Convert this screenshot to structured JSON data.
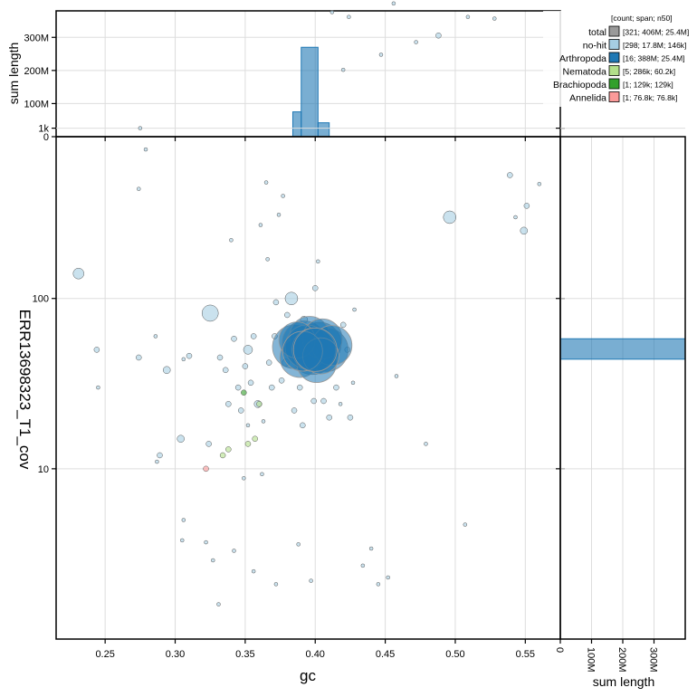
{
  "chart_data": [
    {
      "type": "scatter",
      "name": "blob",
      "xlabel": "gc",
      "ylabel": "ERR13698323_T1_cov",
      "xlim": [
        0.215,
        0.575
      ],
      "ylim_log10": [
        0,
        2.95
      ],
      "y_scale": "log",
      "grid": true,
      "x_ticks": [
        0.25,
        0.3,
        0.35,
        0.4,
        0.45,
        0.5,
        0.55
      ],
      "x_tick_labels": [
        "0.25",
        "0.30",
        "0.35",
        "0.40",
        "0.45",
        "0.50",
        "0.55"
      ],
      "y_ticks": [
        10,
        100,
        1000
      ],
      "y_tick_labels": [
        "10",
        "100",
        "1k"
      ],
      "series": [
        {
          "name": "no-hit",
          "color": "#a6cee3",
          "points": [
            [
              0.231,
              140,
              6
            ],
            [
              0.244,
              50,
              3
            ],
            [
              0.245,
              30,
              2
            ],
            [
              0.275,
              1000,
              2
            ],
            [
              0.274,
              440,
              2
            ],
            [
              0.279,
              750,
              2
            ],
            [
              0.274,
              45,
              3
            ],
            [
              0.286,
              60,
              2
            ],
            [
              0.287,
              11,
              2
            ],
            [
              0.289,
              12,
              3
            ],
            [
              0.294,
              38,
              4
            ],
            [
              0.304,
              15,
              4
            ],
            [
              0.306,
              44,
              2
            ],
            [
              0.31,
              46,
              3
            ],
            [
              0.306,
              5,
              2
            ],
            [
              0.305,
              3.8,
              2
            ],
            [
              0.324,
              14,
              3
            ],
            [
              0.325,
              82,
              9
            ],
            [
              0.332,
              45,
              3
            ],
            [
              0.336,
              38,
              3
            ],
            [
              0.338,
              24,
              3
            ],
            [
              0.34,
              220,
              2
            ],
            [
              0.342,
              58,
              3
            ],
            [
              0.345,
              30,
              3
            ],
            [
              0.347,
              22,
              3
            ],
            [
              0.35,
              40,
              3
            ],
            [
              0.352,
              50,
              5
            ],
            [
              0.352,
              18,
              2
            ],
            [
              0.354,
              32,
              3
            ],
            [
              0.356,
              60,
              3
            ],
            [
              0.359,
              24,
              4
            ],
            [
              0.361,
              270,
              2
            ],
            [
              0.363,
              19,
              2
            ],
            [
              0.365,
              480,
              2
            ],
            [
              0.366,
              170,
              2
            ],
            [
              0.367,
              42,
              3
            ],
            [
              0.369,
              30,
              3
            ],
            [
              0.371,
              60,
              3
            ],
            [
              0.372,
              95,
              3
            ],
            [
              0.374,
              310,
              2
            ],
            [
              0.376,
              33,
              3
            ],
            [
              0.377,
              400,
              2
            ],
            [
              0.379,
              42,
              4
            ],
            [
              0.38,
              80,
              3
            ],
            [
              0.383,
              100,
              7
            ],
            [
              0.385,
              22,
              3
            ],
            [
              0.387,
              62,
              3
            ],
            [
              0.389,
              30,
              3
            ],
            [
              0.391,
              18,
              3
            ],
            [
              0.392,
              75,
              4
            ],
            [
              0.395,
              40,
              3
            ],
            [
              0.397,
              56,
              3
            ],
            [
              0.399,
              25,
              3
            ],
            [
              0.4,
              115,
              3
            ],
            [
              0.402,
              165,
              2
            ],
            [
              0.404,
              38,
              3
            ],
            [
              0.406,
              25,
              3
            ],
            [
              0.408,
              65,
              3
            ],
            [
              0.41,
              20,
              3
            ],
            [
              0.413,
              42,
              3
            ],
            [
              0.415,
              30,
              3
            ],
            [
              0.418,
              24,
              2
            ],
            [
              0.42,
              70,
              3
            ],
            [
              0.423,
              50,
              3
            ],
            [
              0.425,
              20,
              3
            ],
            [
              0.427,
              32,
              2
            ],
            [
              0.428,
              86,
              2
            ],
            [
              0.434,
              2.7,
              2
            ],
            [
              0.44,
              3.4,
              2
            ],
            [
              0.445,
              2.1,
              2
            ],
            [
              0.447,
              2700,
              2
            ],
            [
              0.452,
              2.3,
              2
            ],
            [
              0.456,
              5400,
              2
            ],
            [
              0.458,
              35,
              2
            ],
            [
              0.472,
              3200,
              2
            ],
            [
              0.479,
              14,
              2
            ],
            [
              0.488,
              3500,
              3
            ],
            [
              0.496,
              300,
              7
            ],
            [
              0.507,
              4.7,
              2
            ],
            [
              0.509,
              4500,
              2
            ],
            [
              0.528,
              4400,
              2
            ],
            [
              0.539,
              530,
              3
            ],
            [
              0.543,
              300,
              2
            ],
            [
              0.549,
              250,
              4
            ],
            [
              0.551,
              350,
              3
            ],
            [
              0.56,
              470,
              2
            ],
            [
              0.424,
              4500,
              2
            ],
            [
              0.42,
              2200,
              2
            ],
            [
              0.412,
              4800,
              2
            ],
            [
              0.397,
              2.2,
              2
            ],
            [
              0.388,
              3.6,
              2
            ],
            [
              0.372,
              2.1,
              2
            ],
            [
              0.356,
              2.5,
              2
            ],
            [
              0.342,
              3.3,
              2
            ],
            [
              0.327,
              2.9,
              2
            ],
            [
              0.322,
              3.7,
              2
            ],
            [
              0.331,
              1.6,
              2
            ],
            [
              0.349,
              8.8,
              2
            ],
            [
              0.362,
              9.3,
              2
            ]
          ]
        },
        {
          "name": "Arthropoda",
          "color": "#1f78b4",
          "points": [
            [
              0.385,
              52,
              24
            ],
            [
              0.392,
              55,
              24
            ],
            [
              0.398,
              48,
              24
            ],
            [
              0.403,
              54,
              24
            ],
            [
              0.408,
              50,
              24
            ],
            [
              0.396,
              60,
              22
            ],
            [
              0.389,
              45,
              22
            ],
            [
              0.401,
              42,
              22
            ],
            [
              0.394,
              52,
              24
            ],
            [
              0.405,
              58,
              22
            ],
            [
              0.412,
              53,
              22
            ],
            [
              0.387,
              57,
              20
            ],
            [
              0.399,
              50,
              24
            ],
            [
              0.404,
              46,
              20
            ],
            [
              0.391,
              49,
              22
            ],
            [
              0.4,
              50,
              24
            ]
          ]
        },
        {
          "name": "Nematoda",
          "color": "#b2df8a",
          "points": [
            [
              0.334,
              12,
              3
            ],
            [
              0.338,
              13,
              3
            ],
            [
              0.352,
              14,
              3
            ],
            [
              0.357,
              15,
              3
            ],
            [
              0.36,
              24,
              3
            ]
          ]
        },
        {
          "name": "Brachiopoda",
          "color": "#33a02c",
          "points": [
            [
              0.349,
              28,
              3
            ]
          ]
        },
        {
          "name": "Annelida",
          "color": "#fb9a99",
          "points": [
            [
              0.322,
              10,
              3
            ]
          ]
        }
      ]
    },
    {
      "type": "histogram",
      "name": "gc-span-histogram",
      "orientation": "vertical",
      "ylabel": "sum length",
      "ylim": [
        0,
        380
      ],
      "y_ticks": [
        0,
        100,
        200,
        300
      ],
      "y_tick_labels": [
        "0",
        "100M",
        "200M",
        "300M"
      ],
      "color": "#1f78b4",
      "bins": [
        {
          "x0": 0.384,
          "x1": 0.39,
          "value": 75
        },
        {
          "x0": 0.39,
          "x1": 0.402,
          "value": 270
        },
        {
          "x0": 0.402,
          "x1": 0.41,
          "value": 42
        }
      ]
    },
    {
      "type": "histogram",
      "name": "cov-span-histogram",
      "orientation": "horizontal",
      "xlabel": "sum length",
      "xlim": [
        0,
        400
      ],
      "x_ticks": [
        0,
        100,
        200,
        300
      ],
      "x_tick_labels": [
        "0",
        "100M",
        "200M",
        "300M"
      ],
      "color": "#1f78b4",
      "bins": [
        {
          "y0": 44,
          "y1": 58,
          "value": 400
        }
      ]
    }
  ],
  "legend": {
    "header": "[count; span; n50]",
    "entries": [
      {
        "label": "total",
        "stats": "[321; 406M; 25.4M]",
        "color": "#999999"
      },
      {
        "label": "no-hit",
        "stats": "[298; 17.8M; 146k]",
        "color": "#a6cee3"
      },
      {
        "label": "Arthropoda",
        "stats": "[16; 388M; 25.4M]",
        "color": "#1f78b4"
      },
      {
        "label": "Nematoda",
        "stats": "[5; 286k; 60.2k]",
        "color": "#b2df8a"
      },
      {
        "label": "Brachiopoda",
        "stats": "[1; 129k; 129k]",
        "color": "#33a02c"
      },
      {
        "label": "Annelida",
        "stats": "[1; 76.8k; 76.8k]",
        "color": "#fb9a99"
      }
    ]
  }
}
